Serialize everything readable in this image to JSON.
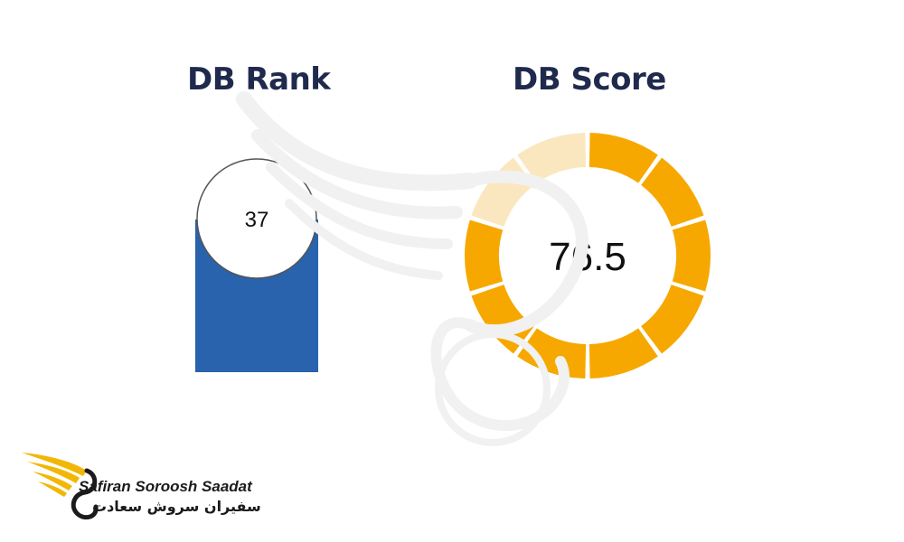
{
  "charts": {
    "rank": {
      "title": "DB Rank"
    },
    "score": {
      "title": "DB Score"
    }
  },
  "chart_data": [
    {
      "type": "bar",
      "title": "DB Rank",
      "categories": [
        ""
      ],
      "values": [
        37
      ],
      "data_label": "37",
      "colors": {
        "bar": "#2962ad",
        "badge_fill": "#ffffff",
        "badge_stroke": "#555555"
      }
    },
    {
      "type": "pie",
      "style": "segmented-donut",
      "title": "DB Score",
      "value": 76.5,
      "max": 100,
      "segments": 10,
      "data_label": "76.5",
      "colors": {
        "filled": "#f7a800",
        "empty": "#fbe7bf"
      }
    }
  ],
  "logo": {
    "name_en": "Safiran Soroosh Saadat",
    "name_fa": "سفیران سروش سعادت",
    "icon": "wing-swan-logo-icon",
    "colors": {
      "wing": "#f2b705",
      "text": "#1b1b1b"
    }
  },
  "watermark": {
    "icon": "wing-watermark-icon"
  }
}
